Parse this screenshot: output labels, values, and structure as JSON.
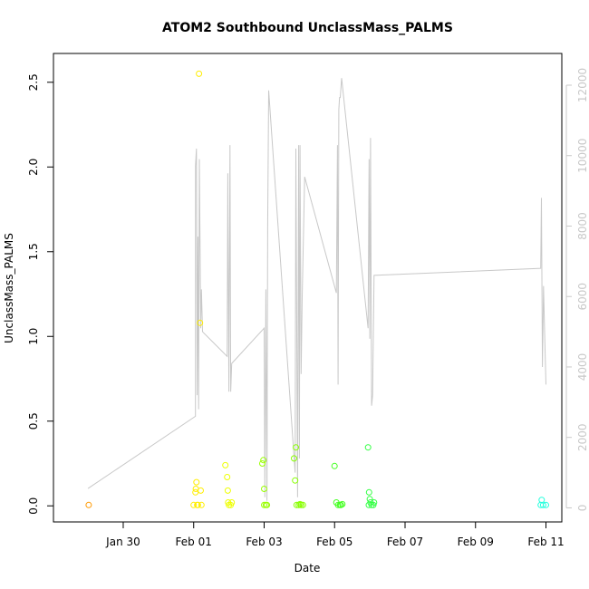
{
  "chart_data": {
    "type": "scatter",
    "title": "ATOM2 Southbound UnclassMass_PALMS",
    "xlabel": "Date",
    "ylabel": "UnclassMass_PALMS",
    "x_unit": "days (day 0 = Jan 30)",
    "xlim": [
      -1.98,
      12.45
    ],
    "ylim": [
      -0.095,
      2.67
    ],
    "y2lim": [
      -400,
      12900
    ],
    "x_ticks": [
      {
        "x": 0,
        "label": "Jan 30"
      },
      {
        "x": 2,
        "label": "Feb 01"
      },
      {
        "x": 4,
        "label": "Feb 03"
      },
      {
        "x": 6,
        "label": "Feb 05"
      },
      {
        "x": 8,
        "label": "Feb 07"
      },
      {
        "x": 10,
        "label": "Feb 09"
      },
      {
        "x": 12,
        "label": "Feb 11"
      }
    ],
    "y_ticks": [
      {
        "y": 0.0,
        "label": "0.0"
      },
      {
        "y": 0.5,
        "label": "0.5"
      },
      {
        "y": 1.0,
        "label": "1.0"
      },
      {
        "y": 1.5,
        "label": "1.5"
      },
      {
        "y": 2.0,
        "label": "2.0"
      },
      {
        "y": 2.5,
        "label": "2.5"
      }
    ],
    "y2_ticks": [
      {
        "y": 0,
        "label": "0"
      },
      {
        "y": 2000,
        "label": "2000"
      },
      {
        "y": 4000,
        "label": "4000"
      },
      {
        "y": 6000,
        "label": "6000"
      },
      {
        "y": 8000,
        "label": "8000"
      },
      {
        "y": 10000,
        "label": "10000"
      },
      {
        "y": 12000,
        "label": "12000"
      }
    ],
    "grid": false,
    "secondary_series": {
      "axis": "right",
      "style": "line",
      "color": "#c8c8c8",
      "points": [
        [
          -1.0,
          550
        ],
        [
          2.05,
          2600
        ],
        [
          2.05,
          9700
        ],
        [
          2.08,
          10200
        ],
        [
          2.1,
          3200
        ],
        [
          2.12,
          7700
        ],
        [
          2.14,
          2800
        ],
        [
          2.16,
          9900
        ],
        [
          2.2,
          5100
        ],
        [
          2.22,
          6200
        ],
        [
          2.25,
          5000
        ],
        [
          2.95,
          4300
        ],
        [
          2.97,
          9500
        ],
        [
          3.0,
          3300
        ],
        [
          3.03,
          10300
        ],
        [
          3.05,
          3300
        ],
        [
          3.08,
          4100
        ],
        [
          4.0,
          5100
        ],
        [
          4.02,
          300
        ],
        [
          4.05,
          6200
        ],
        [
          4.08,
          200
        ],
        [
          4.1,
          8000
        ],
        [
          4.13,
          11850
        ],
        [
          4.88,
          1000
        ],
        [
          4.9,
          10200
        ],
        [
          4.95,
          300
        ],
        [
          4.98,
          10300
        ],
        [
          5.0,
          1400
        ],
        [
          5.02,
          10300
        ],
        [
          5.05,
          3800
        ],
        [
          5.08,
          6000
        ],
        [
          5.15,
          9400
        ],
        [
          6.05,
          6100
        ],
        [
          6.08,
          10300
        ],
        [
          6.1,
          3500
        ],
        [
          6.12,
          11300
        ],
        [
          6.14,
          11650
        ],
        [
          6.16,
          11650
        ],
        [
          6.2,
          12200
        ],
        [
          6.95,
          5100
        ],
        [
          6.98,
          9900
        ],
        [
          7.0,
          4800
        ],
        [
          7.02,
          10500
        ],
        [
          7.05,
          2900
        ],
        [
          7.08,
          3200
        ],
        [
          7.12,
          6600
        ],
        [
          11.85,
          6800
        ],
        [
          11.87,
          8800
        ],
        [
          11.9,
          4000
        ],
        [
          11.93,
          6300
        ],
        [
          11.96,
          5000
        ],
        [
          12.0,
          3500
        ]
      ]
    },
    "points": [
      {
        "x": -0.98,
        "y": 0.005,
        "color": "#ff9900"
      },
      {
        "x": 2.0,
        "y": 0.005,
        "color": "#ffee00"
      },
      {
        "x": 2.05,
        "y": 0.08,
        "color": "#ffee00"
      },
      {
        "x": 2.06,
        "y": 0.1,
        "color": "#ffee00"
      },
      {
        "x": 2.08,
        "y": 0.14,
        "color": "#ffee00"
      },
      {
        "x": 2.1,
        "y": 0.005,
        "color": "#ffee00"
      },
      {
        "x": 2.12,
        "y": 0.005,
        "color": "#ffee00"
      },
      {
        "x": 2.15,
        "y": 2.55,
        "color": "#ffee00"
      },
      {
        "x": 2.18,
        "y": 1.08,
        "color": "#ffee00"
      },
      {
        "x": 2.2,
        "y": 0.09,
        "color": "#ffee00"
      },
      {
        "x": 2.22,
        "y": 0.005,
        "color": "#ffee00"
      },
      {
        "x": 2.9,
        "y": 0.24,
        "color": "#eeff00"
      },
      {
        "x": 2.95,
        "y": 0.17,
        "color": "#eeff00"
      },
      {
        "x": 2.97,
        "y": 0.09,
        "color": "#eeff00"
      },
      {
        "x": 2.98,
        "y": 0.02,
        "color": "#eeff00"
      },
      {
        "x": 3.0,
        "y": 0.005,
        "color": "#eeff00"
      },
      {
        "x": 3.05,
        "y": 0.005,
        "color": "#eeff00"
      },
      {
        "x": 3.08,
        "y": 0.02,
        "color": "#eeff00"
      },
      {
        "x": 3.95,
        "y": 0.25,
        "color": "#99ff00"
      },
      {
        "x": 3.98,
        "y": 0.27,
        "color": "#99ff00"
      },
      {
        "x": 4.0,
        "y": 0.1,
        "color": "#99ff00"
      },
      {
        "x": 4.0,
        "y": 0.005,
        "color": "#99ff00"
      },
      {
        "x": 4.05,
        "y": 0.005,
        "color": "#99ff00"
      },
      {
        "x": 4.08,
        "y": 0.005,
        "color": "#99ff00"
      },
      {
        "x": 4.85,
        "y": 0.28,
        "color": "#88ff00"
      },
      {
        "x": 4.88,
        "y": 0.15,
        "color": "#88ff00"
      },
      {
        "x": 4.9,
        "y": 0.345,
        "color": "#88ff00"
      },
      {
        "x": 4.92,
        "y": 0.005,
        "color": "#88ff00"
      },
      {
        "x": 4.98,
        "y": 0.005,
        "color": "#88ff00"
      },
      {
        "x": 5.02,
        "y": 0.01,
        "color": "#88ff00"
      },
      {
        "x": 5.05,
        "y": 0.005,
        "color": "#88ff00"
      },
      {
        "x": 5.1,
        "y": 0.005,
        "color": "#88ff00"
      },
      {
        "x": 6.0,
        "y": 0.235,
        "color": "#44ff22"
      },
      {
        "x": 6.05,
        "y": 0.02,
        "color": "#44ff22"
      },
      {
        "x": 6.1,
        "y": 0.005,
        "color": "#44ff22"
      },
      {
        "x": 6.15,
        "y": 0.005,
        "color": "#44ff22"
      },
      {
        "x": 6.18,
        "y": 0.005,
        "color": "#44ff22"
      },
      {
        "x": 6.22,
        "y": 0.01,
        "color": "#44ff22"
      },
      {
        "x": 6.95,
        "y": 0.345,
        "color": "#33ff44"
      },
      {
        "x": 6.98,
        "y": 0.08,
        "color": "#33ff44"
      },
      {
        "x": 7.0,
        "y": 0.04,
        "color": "#33ff44"
      },
      {
        "x": 7.02,
        "y": 0.02,
        "color": "#33ff44"
      },
      {
        "x": 6.97,
        "y": 0.005,
        "color": "#33ff44"
      },
      {
        "x": 7.05,
        "y": 0.005,
        "color": "#33ff44"
      },
      {
        "x": 7.1,
        "y": 0.005,
        "color": "#33ff44"
      },
      {
        "x": 7.12,
        "y": 0.02,
        "color": "#33ff44"
      },
      {
        "x": 11.85,
        "y": 0.005,
        "color": "#22ffdd"
      },
      {
        "x": 11.88,
        "y": 0.035,
        "color": "#22ffdd"
      },
      {
        "x": 11.92,
        "y": 0.005,
        "color": "#22ffdd"
      },
      {
        "x": 12.0,
        "y": 0.005,
        "color": "#22ffdd"
      }
    ]
  }
}
